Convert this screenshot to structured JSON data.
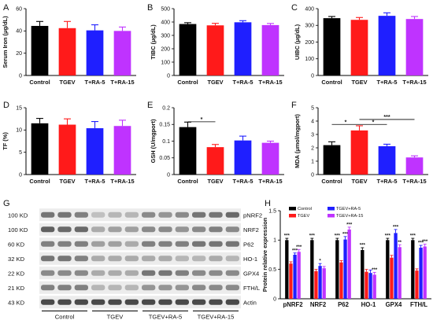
{
  "colors": {
    "Control": "#000000",
    "TGEV": "#ff1a1a",
    "T+RA-5": "#1f1fff",
    "T+RA-15": "#bf33ff",
    "TGEV+RA-5": "#1f1fff",
    "TGEV+RA-15": "#bf33ff"
  },
  "chart_data": [
    {
      "panel": "A",
      "type": "bar",
      "categories": [
        "Control",
        "TGEV",
        "T+RA-5",
        "T+RA-15"
      ],
      "values": [
        44.5,
        42.5,
        40.5,
        40
      ],
      "errors": [
        4,
        6,
        5,
        3.5
      ],
      "ylabel": "Serum Iron (μg/dL)",
      "ylim": [
        0,
        60
      ],
      "yticks": [
        0,
        20,
        40,
        60
      ],
      "annotations": []
    },
    {
      "panel": "B",
      "type": "bar",
      "categories": [
        "Control",
        "TGEV",
        "T+RA-5",
        "T+RA-15"
      ],
      "values": [
        385,
        375,
        398,
        377
      ],
      "errors": [
        10,
        15,
        12,
        12
      ],
      "ylabel": "TIBC (μg/dL)",
      "ylim": [
        0,
        500
      ],
      "yticks": [
        0,
        100,
        200,
        300,
        400,
        500
      ],
      "annotations": []
    },
    {
      "panel": "C",
      "type": "bar",
      "categories": [
        "Control",
        "TGEV",
        "T+RA-5",
        "T+RA-15"
      ],
      "values": [
        343,
        333,
        357,
        338
      ],
      "errors": [
        10,
        14,
        18,
        15
      ],
      "ylabel": "UIBC (μg/dL)",
      "ylim": [
        0,
        400
      ],
      "yticks": [
        0,
        100,
        200,
        300,
        400
      ],
      "annotations": []
    },
    {
      "panel": "D",
      "type": "bar",
      "categories": [
        "Control",
        "TGEV",
        "T+RA-5",
        "T+RA-15"
      ],
      "values": [
        11.5,
        11.2,
        10.4,
        10.9
      ],
      "errors": [
        1.1,
        1.3,
        1.5,
        1.3
      ],
      "ylabel": "TF (%)",
      "ylim": [
        0,
        15
      ],
      "yticks": [
        0,
        5,
        10,
        15
      ],
      "annotations": []
    },
    {
      "panel": "E",
      "type": "bar",
      "categories": [
        "Control",
        "TGEV",
        "T+RA-5",
        "T+RA-15"
      ],
      "values": [
        0.142,
        0.082,
        0.102,
        0.095
      ],
      "errors": [
        0.015,
        0.008,
        0.013,
        0.005
      ],
      "ylabel": "GSH (U/mgport)",
      "ylim": [
        0,
        0.2
      ],
      "yticks": [
        0,
        0.05,
        0.1,
        0.15,
        0.2
      ],
      "annotations": [
        {
          "from": 0,
          "to": 1,
          "label": "*",
          "y": 0.158
        }
      ]
    },
    {
      "panel": "F",
      "type": "bar",
      "categories": [
        "Control",
        "TGEV",
        "T+RA-5",
        "T+RA-15"
      ],
      "values": [
        2.2,
        3.3,
        2.12,
        1.28
      ],
      "errors": [
        0.25,
        0.35,
        0.15,
        0.12
      ],
      "ylabel": "MDA (μmol/mgport)",
      "ylim": [
        0,
        5
      ],
      "yticks": [
        0,
        1,
        2,
        3,
        4,
        5
      ],
      "annotations": [
        {
          "from": 0,
          "to": 1,
          "label": "*",
          "y": 3.75
        },
        {
          "from": 1,
          "to": 2,
          "label": "*",
          "y": 3.75
        },
        {
          "from": 1,
          "to": 3,
          "label": "***",
          "y": 4.12
        }
      ]
    },
    {
      "panel": "H",
      "type": "bar",
      "categories": [
        "pNRF2",
        "NRF2",
        "P62",
        "HO-1",
        "GPX4",
        "FTH/L"
      ],
      "ylabel": "Protein relative expression",
      "ylim": [
        0,
        1.5
      ],
      "yticks": [
        0,
        0.5,
        1,
        1.5
      ],
      "legend": [
        "Control",
        "TGEV",
        "TGEV+RA-5",
        "TGEV+RA-15"
      ],
      "legend_position": "top",
      "series": [
        {
          "name": "Control",
          "values": [
            1.0,
            1.0,
            1.0,
            0.83,
            1.0,
            1.0
          ],
          "errors": [
            0.03,
            0.03,
            0.03,
            0.04,
            0.03,
            0.03
          ],
          "sig": [
            "***",
            "***",
            "***",
            "***",
            "***",
            "***"
          ]
        },
        {
          "name": "TGEV",
          "values": [
            0.6,
            0.47,
            0.62,
            0.46,
            0.7,
            0.48
          ],
          "errors": [
            0.03,
            0.03,
            0.03,
            0.04,
            0.04,
            0.03
          ],
          "sig": [
            "",
            "",
            "",
            "",
            "",
            ""
          ]
        },
        {
          "name": "TGEV+RA-5",
          "values": [
            0.75,
            0.56,
            1.01,
            0.44,
            1.12,
            0.87
          ],
          "errors": [
            0.03,
            0.04,
            0.05,
            0.05,
            0.06,
            0.04
          ],
          "sig": [
            "***",
            "*",
            "***",
            "",
            "***",
            "***"
          ]
        },
        {
          "name": "TGEV+RA-15",
          "values": [
            0.8,
            0.52,
            1.18,
            0.41,
            0.88,
            0.89
          ],
          "errors": [
            0.04,
            0.03,
            0.04,
            0.04,
            0.04,
            0.04
          ],
          "sig": [
            "***",
            "",
            "***",
            "***",
            "**",
            "***"
          ]
        }
      ]
    }
  ],
  "blot": {
    "panel": "G",
    "kd_labels": [
      "100 KD",
      "100 KD",
      "60 KD",
      "32 KD",
      "22 KD",
      "21 KD",
      "43 KD"
    ],
    "proteins": [
      "pNRF2",
      "NRF2",
      "P62",
      "HO-1",
      "GPX4",
      "FTH/L",
      "Actin"
    ],
    "groups": [
      "Control",
      "TGEV",
      "TGEV+RA-5",
      "TGEV+RA-15"
    ],
    "intensity": [
      [
        0.55,
        0.55,
        0.5,
        0.2,
        0.25,
        0.25,
        0.45,
        0.4,
        0.45,
        0.55,
        0.55,
        0.6
      ],
      [
        0.65,
        0.6,
        0.6,
        0.3,
        0.35,
        0.35,
        0.45,
        0.45,
        0.4,
        0.45,
        0.5,
        0.45
      ],
      [
        0.5,
        0.5,
        0.5,
        0.35,
        0.35,
        0.3,
        0.5,
        0.5,
        0.5,
        0.55,
        0.55,
        0.55
      ],
      [
        0.55,
        0.55,
        0.5,
        0.3,
        0.3,
        0.3,
        0.3,
        0.3,
        0.25,
        0.25,
        0.3,
        0.25
      ],
      [
        0.45,
        0.45,
        0.45,
        0.3,
        0.3,
        0.3,
        0.55,
        0.55,
        0.5,
        0.45,
        0.45,
        0.45
      ],
      [
        0.5,
        0.5,
        0.5,
        0.25,
        0.25,
        0.25,
        0.4,
        0.4,
        0.4,
        0.45,
        0.45,
        0.45
      ],
      [
        0.75,
        0.75,
        0.75,
        0.75,
        0.75,
        0.75,
        0.75,
        0.75,
        0.75,
        0.75,
        0.75,
        0.75
      ]
    ]
  }
}
